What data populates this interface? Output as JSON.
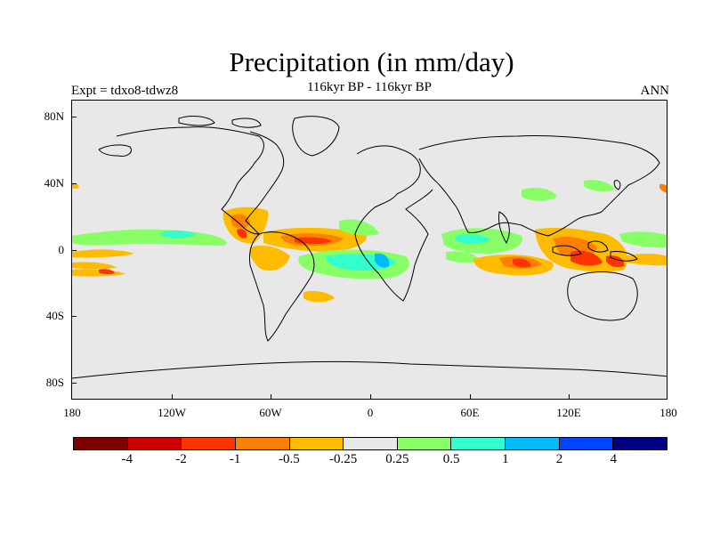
{
  "title": "Precipitation (in mm/day)",
  "subtitle": "116kyr BP - 116kyr BP",
  "left_label": "Expt = tdxo8-tdwz8",
  "right_label": "ANN",
  "y_ticks": [
    "80N",
    "40N",
    "0",
    "40S",
    "80S"
  ],
  "x_ticks": [
    "180",
    "120W",
    "60W",
    "0",
    "60E",
    "120E",
    "180"
  ],
  "colorbar": {
    "colors": [
      "#7f0000",
      "#cc0000",
      "#ff3300",
      "#ff7f00",
      "#ffbb00",
      "#e8e8e8",
      "#88ff66",
      "#33ffcc",
      "#00bbff",
      "#0044ff",
      "#000080"
    ],
    "labels": [
      "-4",
      "-2",
      "-1",
      "-0.5",
      "-0.25",
      "0.25",
      "0.5",
      "1",
      "2",
      "4"
    ]
  },
  "colors": {
    "land_background": "#e8e8e8",
    "coastline": "#000000"
  }
}
